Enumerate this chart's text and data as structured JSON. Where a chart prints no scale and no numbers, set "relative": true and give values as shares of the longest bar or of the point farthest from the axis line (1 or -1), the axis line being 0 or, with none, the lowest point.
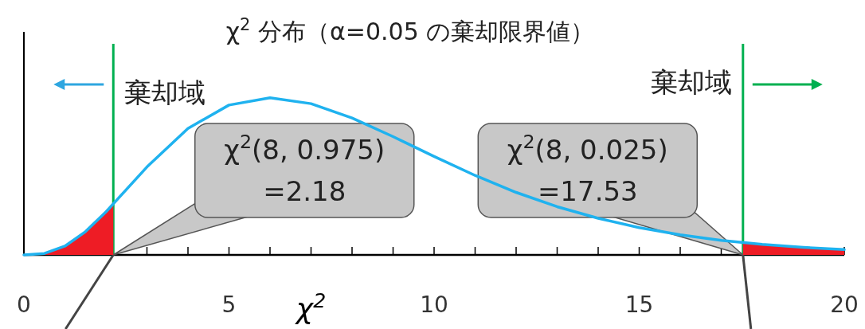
{
  "chart_data": {
    "type": "line",
    "title": "χ$^{2}$ 分布（α=0.05 の棄却限界値）",
    "xlabel": "χ$^{2}$",
    "relative": true,
    "xlim": [
      0,
      20
    ],
    "xticks": [
      0,
      {
        "value": 1,
        "label": null
      },
      {
        "value": 2,
        "label": null
      },
      {
        "value": 3,
        "label": null
      },
      {
        "value": 4,
        "label": null
      },
      5,
      {
        "value": 6,
        "label": null
      },
      {
        "value": 7,
        "label": null
      },
      {
        "value": 8,
        "label": null
      },
      {
        "value": 9,
        "label": null
      },
      10,
      {
        "value": 11,
        "label": null
      },
      {
        "value": 12,
        "label": null
      },
      {
        "value": 13,
        "label": null
      },
      {
        "value": 14,
        "label": null
      },
      15,
      {
        "value": 16,
        "label": null
      },
      {
        "value": 17,
        "label": null
      },
      {
        "value": 18,
        "label": null
      },
      {
        "value": 19,
        "label": null
      },
      20
    ],
    "series": [
      {
        "type": "area",
        "color": "#ee1c25",
        "x": [
          0,
          0.5,
          1,
          1.5,
          2,
          2.18
        ],
        "values": [
          0,
          0.009,
          0.056,
          0.148,
          0.274,
          0.324
        ]
      },
      {
        "type": "area",
        "color": "#ee1c25",
        "x": [
          17.53,
          18,
          19,
          20
        ],
        "values": [
          0.078,
          0.067,
          0.048,
          0.034
        ]
      },
      {
        "type": "line",
        "color": "#1fb2ef",
        "x": [
          0,
          0.5,
          1,
          1.5,
          2,
          3,
          4,
          5,
          6,
          7,
          8,
          9,
          10,
          11,
          12,
          13,
          14,
          15,
          16,
          17,
          18,
          19,
          20
        ],
        "values": [
          0,
          0.009,
          0.056,
          0.148,
          0.274,
          0.56,
          0.805,
          0.954,
          1,
          0.963,
          0.872,
          0.753,
          0.627,
          0.506,
          0.398,
          0.307,
          0.233,
          0.174,
          0.128,
          0.093,
          0.067,
          0.048,
          0.034
        ]
      }
    ],
    "ref_lines": [
      {
        "axis": "x",
        "value": 2.18,
        "label": "棄却域",
        "color": "#00b050"
      },
      {
        "axis": "x",
        "value": 17.53,
        "label": "棄却域",
        "color": "#00b050"
      }
    ],
    "annotations": [
      {
        "text": "χ$^{2}$(8, 0.975)\n=2.18",
        "x": 2.18,
        "y": 0
      },
      {
        "text": "χ$^{2}$(8, 0.025)\n=17.53",
        "x": 17.53,
        "y": 0
      }
    ]
  }
}
